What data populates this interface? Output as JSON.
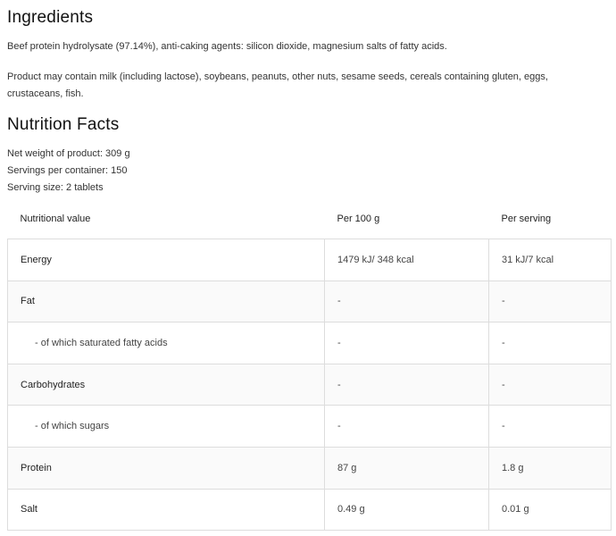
{
  "ingredients": {
    "title": "Ingredients",
    "text": "Beef protein hydrolysate (97.14%), anti-caking agents: silicon dioxide, magnesium salts of fatty acids.",
    "allergens": "Product may contain milk (including lactose), soybeans, peanuts, other nuts, sesame seeds, cereals containing gluten, eggs, crustaceans, fish."
  },
  "nutrition": {
    "title": "Nutrition Facts",
    "net_weight": "Net weight of product: 309 g",
    "servings": "Servings per container: 150",
    "serving_size": "Serving size: 2 tablets",
    "headers": [
      "Nutritional value",
      "Per 100 g",
      "Per serving"
    ],
    "rows": [
      {
        "name": "Energy",
        "per100": "1479 kJ/ 348 kcal",
        "serving": "31 kJ/7 kcal"
      },
      {
        "name": "Fat",
        "per100": "-",
        "serving": "-"
      },
      {
        "name": "- of which saturated fatty acids",
        "per100": "-",
        "serving": "-"
      },
      {
        "name": "Carbohydrates",
        "per100": "-",
        "serving": "-"
      },
      {
        "name": "- of which sugars",
        "per100": "-",
        "serving": "-"
      },
      {
        "name": "Protein",
        "per100": "87 g",
        "serving": "1.8 g"
      },
      {
        "name": "Salt",
        "per100": "0.49 g",
        "serving": "0.01 g"
      }
    ]
  }
}
